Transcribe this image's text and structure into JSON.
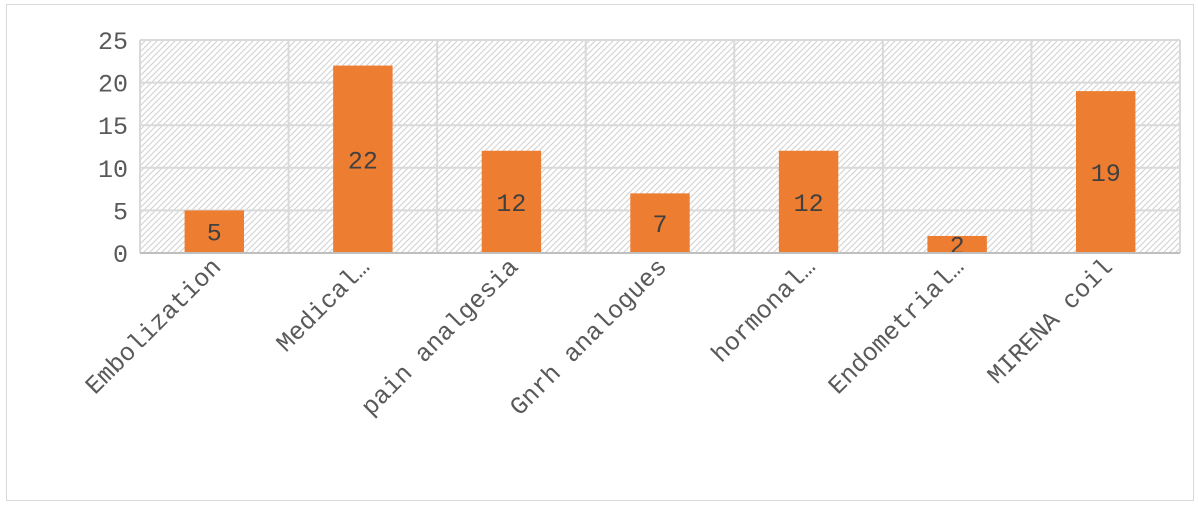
{
  "chart_data": {
    "type": "bar",
    "categories": [
      "Embolization",
      "Medical…",
      "pain analgesia",
      "Gnrh analogues",
      "hormonal…",
      "Endometrial…",
      "MIRENA coil"
    ],
    "values": [
      5,
      22,
      12,
      7,
      12,
      2,
      19
    ],
    "data_labels": [
      "5",
      "22",
      "12",
      "7",
      "12",
      "2",
      "19"
    ],
    "y_ticks": [
      "0",
      "5",
      "10",
      "15",
      "20",
      "25"
    ],
    "ylim": [
      0,
      25
    ],
    "title": "",
    "xlabel": "",
    "ylabel": "",
    "grid": true,
    "plot_background": "hatched",
    "legend": "none",
    "colors": {
      "bar": "#ED7D31",
      "grid": "#d9d9d9",
      "hatch": "#d0d0d0",
      "text": "#595959"
    }
  }
}
